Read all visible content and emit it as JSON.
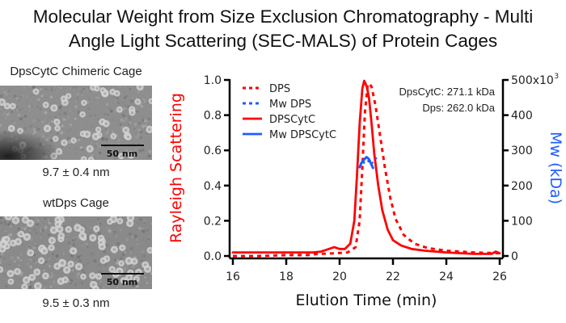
{
  "title": {
    "line1": "Molecular Weight from Size Exclusion Chromatography - Multi",
    "line2": "Angle Light Scattering (SEC-MALS) of Protein Cages"
  },
  "panels": [
    {
      "label": "DpsCytC Chimeric Cage",
      "scale_bar": "50 nm",
      "size": "9.7 ± 0.4 nm"
    },
    {
      "label": "wtDps Cage",
      "scale_bar": "50 nm",
      "size": "9.5 ± 0.3 nm"
    }
  ],
  "chart_data": {
    "type": "line",
    "title": "",
    "xlabel": "Elution Time (min)",
    "ylabel": "Rayleigh Scattering",
    "y2label": "Mw (kDa)",
    "xlim": [
      16,
      26
    ],
    "ylim": [
      0,
      1.0
    ],
    "y2lim": [
      0,
      500
    ],
    "x_ticks": [
      "16",
      "18",
      "20",
      "22",
      "24",
      "26"
    ],
    "y_ticks": [
      "0.0",
      "0.2",
      "0.4",
      "0.6",
      "0.8",
      "1.0"
    ],
    "y2_ticks": [
      "0",
      "100",
      "200",
      "300",
      "400",
      "500x10"
    ],
    "y2_exponent": "3",
    "grid": false,
    "legend_position": "top-left",
    "annotations": [
      "DpsCytC: 271.1 kDa",
      "Dps: 262.0 kDa"
    ],
    "colors": {
      "scatter": "#ff0000",
      "mw": "#1f5cff",
      "axis": "#000000"
    },
    "series": [
      {
        "name": "DPS",
        "axis": "left",
        "style": "dashed",
        "color": "#ff0000",
        "x": [
          16.0,
          16.3,
          17.0,
          18.0,
          18.8,
          19.2,
          19.8,
          20.3,
          20.6,
          20.75,
          20.85,
          20.95,
          21.05,
          21.12,
          21.2,
          21.35,
          21.5,
          21.7,
          21.9,
          22.1,
          22.4,
          22.8,
          23.3,
          24.0,
          25.0,
          26.0
        ],
        "y": [
          0.0,
          0.0,
          0.0,
          0.005,
          0.005,
          0.012,
          0.015,
          0.02,
          0.05,
          0.2,
          0.5,
          0.82,
          0.97,
          0.98,
          0.96,
          0.85,
          0.7,
          0.5,
          0.33,
          0.21,
          0.12,
          0.07,
          0.045,
          0.03,
          0.02,
          0.015
        ]
      },
      {
        "name": "Mw DPS",
        "axis": "right",
        "style": "dashed",
        "color": "#1f5cff",
        "x": [
          20.9,
          21.0,
          21.1,
          21.2,
          21.3,
          21.4
        ],
        "y": [
          262,
          282,
          265,
          262,
          270,
          280
        ]
      },
      {
        "name": "DPSCytC",
        "axis": "left",
        "style": "solid",
        "color": "#ff0000",
        "x": [
          16.0,
          17.0,
          18.0,
          19.0,
          19.3,
          19.6,
          19.8,
          20.0,
          20.2,
          20.4,
          20.55,
          20.65,
          20.75,
          20.85,
          20.92,
          20.97,
          21.02,
          21.1,
          21.2,
          21.3,
          21.45,
          21.6,
          21.8,
          22.0,
          22.3,
          22.7,
          23.2,
          24.0,
          25.0,
          25.7,
          25.85,
          26.0
        ],
        "y": [
          0.02,
          0.02,
          0.02,
          0.02,
          0.025,
          0.04,
          0.05,
          0.04,
          0.04,
          0.07,
          0.2,
          0.45,
          0.75,
          0.95,
          0.995,
          0.98,
          0.96,
          0.9,
          0.75,
          0.58,
          0.4,
          0.26,
          0.15,
          0.09,
          0.06,
          0.04,
          0.03,
          0.02,
          0.012,
          0.012,
          0.025,
          0.015
        ]
      },
      {
        "name": "Mw DPSCytC",
        "axis": "right",
        "style": "solid",
        "color": "#1f5cff",
        "x": [
          20.75,
          20.82,
          20.9,
          20.97,
          21.03,
          21.1,
          21.18,
          21.25
        ],
        "y": [
          252,
          265,
          272,
          278,
          280,
          275,
          262,
          250
        ]
      }
    ]
  }
}
